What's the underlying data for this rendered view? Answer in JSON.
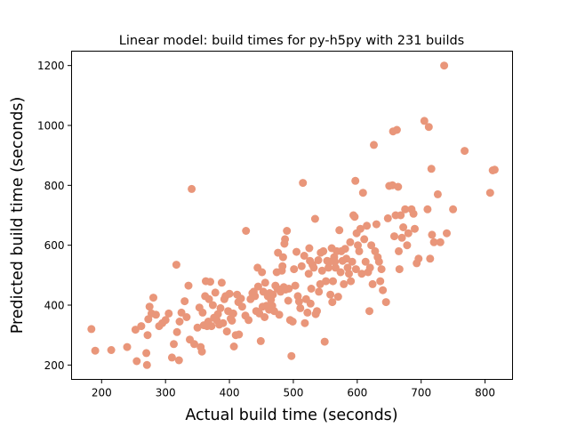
{
  "chart_data": {
    "type": "scatter",
    "title": "Linear model: build times for py-h5py with 231 builds",
    "xlabel": "Actual build time (seconds)",
    "ylabel": "Predicted build time (seconds)",
    "xlim": [
      153,
      843
    ],
    "ylim": [
      152,
      1248
    ],
    "xticks": [
      200,
      300,
      400,
      500,
      600,
      700,
      800
    ],
    "yticks": [
      200,
      400,
      600,
      800,
      1000,
      1200
    ],
    "grid": false,
    "marker_color": "#e9967a",
    "points": [
      [
        184,
        320
      ],
      [
        190,
        248
      ],
      [
        215,
        250
      ],
      [
        240,
        260
      ],
      [
        253,
        318
      ],
      [
        255,
        213
      ],
      [
        262,
        330
      ],
      [
        270,
        240
      ],
      [
        271,
        200
      ],
      [
        272,
        300
      ],
      [
        273,
        353
      ],
      [
        275,
        395
      ],
      [
        278,
        372
      ],
      [
        281,
        425
      ],
      [
        285,
        368
      ],
      [
        290,
        330
      ],
      [
        295,
        340
      ],
      [
        300,
        350
      ],
      [
        305,
        372
      ],
      [
        310,
        225
      ],
      [
        313,
        270
      ],
      [
        317,
        535
      ],
      [
        318,
        310
      ],
      [
        321,
        216
      ],
      [
        322,
        345
      ],
      [
        325,
        375
      ],
      [
        330,
        413
      ],
      [
        333,
        360
      ],
      [
        336,
        465
      ],
      [
        338,
        285
      ],
      [
        341,
        788
      ],
      [
        345,
        270
      ],
      [
        350,
        325
      ],
      [
        353,
        392
      ],
      [
        355,
        260
      ],
      [
        357,
        245
      ],
      [
        358,
        375
      ],
      [
        360,
        333
      ],
      [
        362,
        430
      ],
      [
        363,
        480
      ],
      [
        365,
        330
      ],
      [
        367,
        345
      ],
      [
        368,
        420
      ],
      [
        370,
        478
      ],
      [
        372,
        330
      ],
      [
        374,
        400
      ],
      [
        376,
        358
      ],
      [
        378,
        442
      ],
      [
        380,
        350
      ],
      [
        382,
        370
      ],
      [
        384,
        335
      ],
      [
        386,
        390
      ],
      [
        388,
        475
      ],
      [
        390,
        340
      ],
      [
        392,
        420
      ],
      [
        394,
        430
      ],
      [
        396,
        312
      ],
      [
        398,
        380
      ],
      [
        400,
        438
      ],
      [
        402,
        355
      ],
      [
        404,
        348
      ],
      [
        406,
        372
      ],
      [
        407,
        262
      ],
      [
        410,
        300
      ],
      [
        412,
        435
      ],
      [
        414,
        410
      ],
      [
        415,
        302
      ],
      [
        418,
        422
      ],
      [
        420,
        395
      ],
      [
        425,
        365
      ],
      [
        426,
        648
      ],
      [
        430,
        350
      ],
      [
        433,
        420
      ],
      [
        436,
        440
      ],
      [
        438,
        445
      ],
      [
        440,
        430
      ],
      [
        442,
        380
      ],
      [
        444,
        525
      ],
      [
        445,
        462
      ],
      [
        447,
        372
      ],
      [
        449,
        280
      ],
      [
        451,
        510
      ],
      [
        452,
        395
      ],
      [
        453,
        445
      ],
      [
        455,
        360
      ],
      [
        456,
        475
      ],
      [
        458,
        398
      ],
      [
        460,
        430
      ],
      [
        462,
        385
      ],
      [
        463,
        440
      ],
      [
        465,
        418
      ],
      [
        467,
        398
      ],
      [
        468,
        435
      ],
      [
        470,
        380
      ],
      [
        472,
        465
      ],
      [
        474,
        510
      ],
      [
        475,
        455
      ],
      [
        476,
        575
      ],
      [
        478,
        368
      ],
      [
        480,
        445
      ],
      [
        482,
        515
      ],
      [
        483,
        530
      ],
      [
        484,
        560
      ],
      [
        485,
        460
      ],
      [
        486,
        605
      ],
      [
        487,
        620
      ],
      [
        488,
        452
      ],
      [
        490,
        648
      ],
      [
        492,
        415
      ],
      [
        493,
        455
      ],
      [
        495,
        350
      ],
      [
        497,
        230
      ],
      [
        499,
        345
      ],
      [
        501,
        520
      ],
      [
        503,
        465
      ],
      [
        505,
        578
      ],
      [
        507,
        430
      ],
      [
        509,
        412
      ],
      [
        511,
        390
      ],
      [
        513,
        530
      ],
      [
        515,
        808
      ],
      [
        517,
        565
      ],
      [
        518,
        340
      ],
      [
        520,
        420
      ],
      [
        522,
        375
      ],
      [
        524,
        505
      ],
      [
        525,
        590
      ],
      [
        526,
        548
      ],
      [
        527,
        405
      ],
      [
        528,
        455
      ],
      [
        530,
        535
      ],
      [
        532,
        525
      ],
      [
        534,
        688
      ],
      [
        535,
        370
      ],
      [
        537,
        380
      ],
      [
        539,
        550
      ],
      [
        540,
        445
      ],
      [
        542,
        470
      ],
      [
        543,
        575
      ],
      [
        545,
        515
      ],
      [
        547,
        580
      ],
      [
        549,
        278
      ],
      [
        551,
        480
      ],
      [
        553,
        548
      ],
      [
        555,
        525
      ],
      [
        557,
        545
      ],
      [
        558,
        435
      ],
      [
        560,
        590
      ],
      [
        561,
        410
      ],
      [
        562,
        480
      ],
      [
        564,
        560
      ],
      [
        565,
        545
      ],
      [
        566,
        525
      ],
      [
        568,
        580
      ],
      [
        570,
        428
      ],
      [
        572,
        650
      ],
      [
        574,
        510
      ],
      [
        575,
        580
      ],
      [
        577,
        548
      ],
      [
        579,
        470
      ],
      [
        581,
        588
      ],
      [
        583,
        555
      ],
      [
        585,
        525
      ],
      [
        587,
        505
      ],
      [
        589,
        610
      ],
      [
        590,
        480
      ],
      [
        592,
        545
      ],
      [
        594,
        700
      ],
      [
        596,
        695
      ],
      [
        597,
        815
      ],
      [
        598,
        520
      ],
      [
        599,
        640
      ],
      [
        601,
        600
      ],
      [
        603,
        580
      ],
      [
        605,
        655
      ],
      [
        607,
        505
      ],
      [
        609,
        775
      ],
      [
        611,
        620
      ],
      [
        613,
        545
      ],
      [
        615,
        665
      ],
      [
        617,
        510
      ],
      [
        619,
        380
      ],
      [
        620,
        525
      ],
      [
        622,
        600
      ],
      [
        624,
        470
      ],
      [
        626,
        935
      ],
      [
        628,
        580
      ],
      [
        630,
        670
      ],
      [
        632,
        560
      ],
      [
        634,
        545
      ],
      [
        636,
        480
      ],
      [
        638,
        520
      ],
      [
        640,
        450
      ],
      [
        645,
        410
      ],
      [
        648,
        690
      ],
      [
        650,
        798
      ],
      [
        655,
        800
      ],
      [
        656,
        980
      ],
      [
        658,
        630
      ],
      [
        660,
        700
      ],
      [
        662,
        985
      ],
      [
        664,
        795
      ],
      [
        665,
        580
      ],
      [
        666,
        520
      ],
      [
        668,
        700
      ],
      [
        670,
        625
      ],
      [
        672,
        660
      ],
      [
        675,
        720
      ],
      [
        678,
        600
      ],
      [
        680,
        640
      ],
      [
        685,
        720
      ],
      [
        688,
        705
      ],
      [
        690,
        655
      ],
      [
        693,
        540
      ],
      [
        696,
        555
      ],
      [
        705,
        1015
      ],
      [
        710,
        720
      ],
      [
        712,
        995
      ],
      [
        714,
        555
      ],
      [
        716,
        855
      ],
      [
        717,
        635
      ],
      [
        720,
        610
      ],
      [
        726,
        770
      ],
      [
        730,
        610
      ],
      [
        736,
        1200
      ],
      [
        740,
        640
      ],
      [
        750,
        720
      ],
      [
        768,
        915
      ],
      [
        808,
        775
      ],
      [
        812,
        850
      ],
      [
        815,
        852
      ]
    ]
  }
}
